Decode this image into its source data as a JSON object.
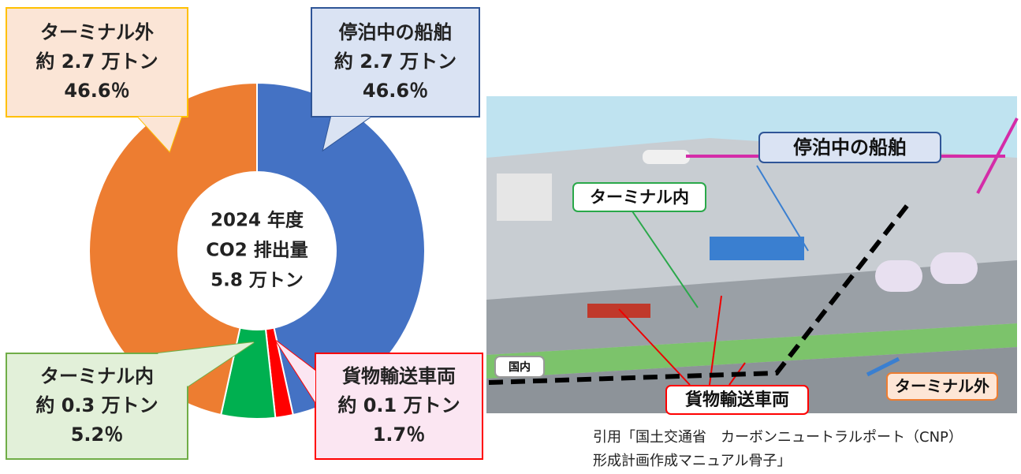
{
  "chart_data": {
    "type": "donut",
    "center_text": [
      "2024 年度",
      "CO2 排出量",
      "5.8 万トン"
    ],
    "categories": [
      "停泊中の船舶",
      "貨物輸送車両",
      "ターミナル内",
      "ターミナル外"
    ],
    "values": [
      46.6,
      1.7,
      5.2,
      46.6
    ],
    "value_labels": [
      "46.6％",
      "1.7％",
      "5.2％",
      "46.6％"
    ],
    "amount_labels": [
      "約 2.7 万トン",
      "約 0.1 万トン",
      "約 0.3 万トン",
      "約 2.7 万トン"
    ],
    "colors": [
      "#4472c4",
      "#ff0000",
      "#00b050",
      "#ed7d31"
    ]
  },
  "illustration": {
    "labels": [
      "停泊中の船舶",
      "ターミナル内",
      "貨物輸送車両",
      "ターミナル外",
      "国内"
    ],
    "citation": [
      "引用「国土交通省　カーボンニュートラルポート（CNP）",
      "形成計画作成マニュアル骨子」"
    ]
  }
}
